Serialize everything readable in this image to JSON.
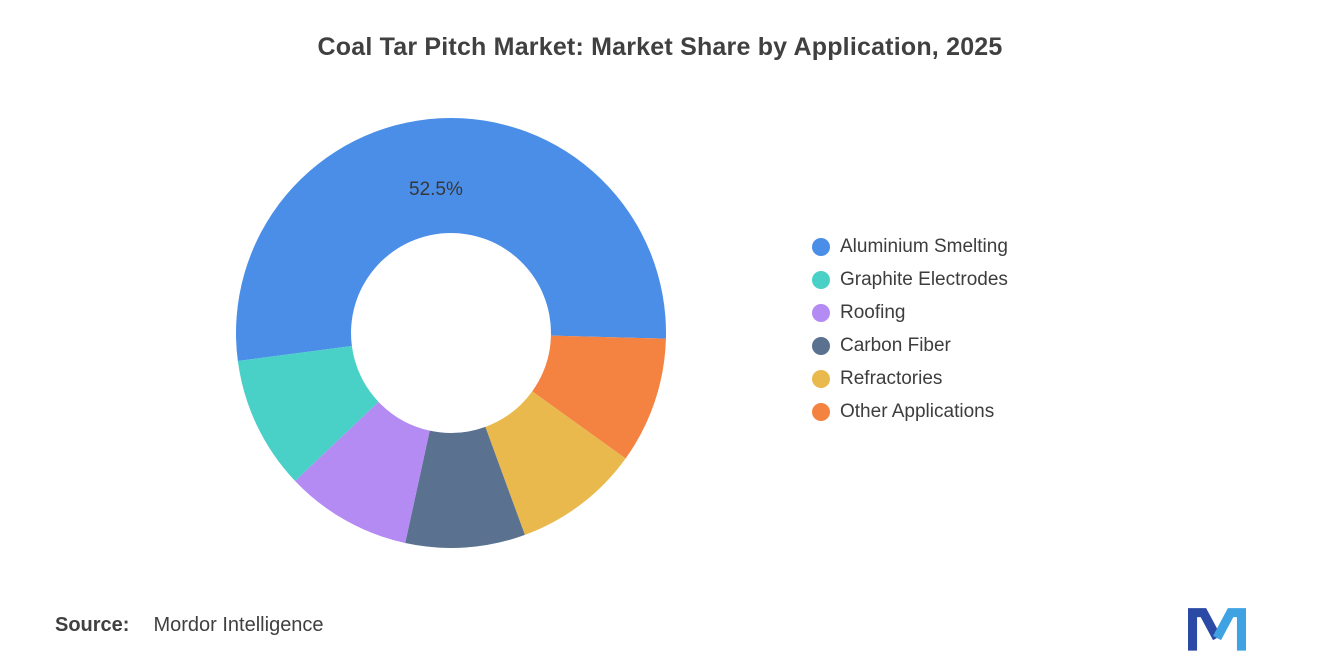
{
  "header": {
    "title": "Coal Tar Pitch Market: Market Share by Application, 2025"
  },
  "chart_data": {
    "type": "pie",
    "subtype": "donut",
    "title": "Coal Tar Pitch Market: Market Share by Application, 2025",
    "labels": [
      "Aluminium Smelting",
      "Graphite Electrodes",
      "Roofing",
      "Carbon Fiber",
      "Refractories",
      "Other Applications"
    ],
    "values": [
      52.5,
      10.0,
      9.5,
      9.0,
      9.5,
      9.5
    ],
    "colors": [
      "#4b8ee8",
      "#49d1c8",
      "#b48bf2",
      "#5a7190",
      "#e9b94e",
      "#f48341"
    ],
    "shown_label": "52.5%",
    "legend_position": "right",
    "start_angle_deg": -97.5,
    "draw_order": [
      0,
      5,
      4,
      3,
      2,
      1
    ],
    "inner_radius_ratio": 0.465
  },
  "source": {
    "label": "Source:",
    "value": "Mordor Intelligence"
  },
  "logo": {
    "name": "mordor-intelligence-logo",
    "dark_blue": "#2b4aa5",
    "light_blue": "#3fa2e2"
  }
}
